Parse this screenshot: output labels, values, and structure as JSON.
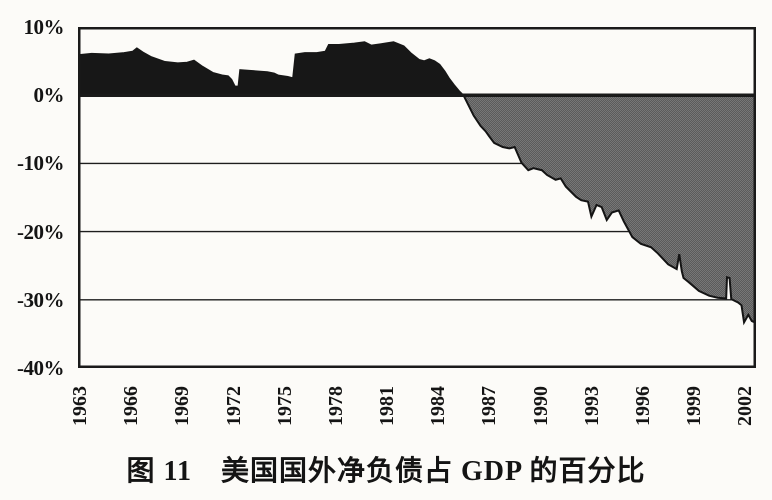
{
  "figure": {
    "caption": "图 11　美国国外净负债占 GDP 的百分比"
  },
  "chart_data": {
    "type": "area",
    "title": "图 11 美国国外净负债占 GDP 的百分比",
    "xlabel": "",
    "ylabel": "",
    "xlim": [
      1963,
      2002.75
    ],
    "ylim": [
      -40,
      10
    ],
    "grid": true,
    "legend": "none",
    "x_ticks": [
      1963,
      1966,
      1969,
      1972,
      1975,
      1978,
      1981,
      1984,
      1987,
      1990,
      1993,
      1996,
      1999,
      2002
    ],
    "x_tick_labels": [
      "1963",
      "1966",
      "1969",
      "1972",
      "1975",
      "1978",
      "1981",
      "1984",
      "1987",
      "1990",
      "1993",
      "1996",
      "1999",
      "2002"
    ],
    "y_ticks": [
      10,
      0,
      -10,
      -20,
      -30,
      -40
    ],
    "y_tick_labels": [
      "10%",
      "0%",
      "-10%",
      "-20%",
      "-30%",
      "-40%"
    ],
    "zero_line": 0,
    "colors": {
      "positive_fill": "#171717",
      "negative_base": "#777777",
      "negative_alt": "#5b5b5b",
      "outline": "#141414",
      "grid": "#1d1d1d",
      "frame": "#1a1a1a",
      "background": "#fcfbf8"
    },
    "series": [
      {
        "name": "net-position-positive-pct-gdp",
        "style": "solid-black-area",
        "points": [
          [
            1963.0,
            5.9
          ],
          [
            1963.8,
            6.1
          ],
          [
            1964.8,
            6.0
          ],
          [
            1965.7,
            6.2
          ],
          [
            1966.2,
            6.4
          ],
          [
            1966.45,
            6.9
          ],
          [
            1966.8,
            6.3
          ],
          [
            1967.3,
            5.6
          ],
          [
            1968.1,
            4.9
          ],
          [
            1968.85,
            4.7
          ],
          [
            1969.4,
            4.8
          ],
          [
            1969.8,
            5.1
          ],
          [
            1970.3,
            4.2
          ],
          [
            1970.9,
            3.3
          ],
          [
            1971.5,
            2.9
          ],
          [
            1971.8,
            2.8
          ],
          [
            1972.0,
            2.3
          ],
          [
            1972.2,
            1.3
          ],
          [
            1972.4,
            1.3
          ],
          [
            1972.5,
            3.7
          ],
          [
            1973.05,
            3.6
          ],
          [
            1973.6,
            3.5
          ],
          [
            1974.1,
            3.4
          ],
          [
            1974.5,
            3.2
          ],
          [
            1974.75,
            2.9
          ],
          [
            1975.3,
            2.7
          ],
          [
            1975.6,
            2.5
          ],
          [
            1975.75,
            6.0
          ],
          [
            1976.3,
            6.2
          ],
          [
            1977.0,
            6.2
          ],
          [
            1977.5,
            6.4
          ],
          [
            1977.7,
            7.4
          ],
          [
            1978.3,
            7.4
          ],
          [
            1979.2,
            7.6
          ],
          [
            1979.8,
            7.8
          ],
          [
            1980.2,
            7.3
          ],
          [
            1981.0,
            7.6
          ],
          [
            1981.5,
            7.8
          ],
          [
            1982.1,
            7.2
          ],
          [
            1982.5,
            6.2
          ],
          [
            1983.0,
            5.2
          ],
          [
            1983.3,
            5.0
          ],
          [
            1983.6,
            5.3
          ],
          [
            1983.9,
            5.0
          ],
          [
            1984.2,
            4.5
          ],
          [
            1984.5,
            3.5
          ],
          [
            1984.75,
            2.5
          ],
          [
            1985.05,
            1.5
          ],
          [
            1985.35,
            0.6
          ],
          [
            1985.6,
            0.0
          ]
        ]
      },
      {
        "name": "net-position-negative-pct-gdp",
        "style": "halftone-gray-area",
        "points": [
          [
            1985.6,
            0.0
          ],
          [
            1985.9,
            -1.5
          ],
          [
            1986.2,
            -3.0
          ],
          [
            1986.6,
            -4.5
          ],
          [
            1986.9,
            -5.3
          ],
          [
            1987.1,
            -6.0
          ],
          [
            1987.4,
            -7.0
          ],
          [
            1987.9,
            -7.6
          ],
          [
            1988.3,
            -7.8
          ],
          [
            1988.6,
            -7.6
          ],
          [
            1989.0,
            -9.9
          ],
          [
            1989.4,
            -11.0
          ],
          [
            1989.7,
            -10.7
          ],
          [
            1990.2,
            -11.0
          ],
          [
            1990.5,
            -11.7
          ],
          [
            1991.0,
            -12.4
          ],
          [
            1991.3,
            -12.2
          ],
          [
            1991.6,
            -13.4
          ],
          [
            1992.2,
            -14.9
          ],
          [
            1992.5,
            -15.4
          ],
          [
            1992.9,
            -15.6
          ],
          [
            1993.1,
            -17.8
          ],
          [
            1993.4,
            -16.1
          ],
          [
            1993.7,
            -16.4
          ],
          [
            1994.0,
            -18.3
          ],
          [
            1994.3,
            -17.2
          ],
          [
            1994.7,
            -16.9
          ],
          [
            1995.0,
            -18.5
          ],
          [
            1995.5,
            -20.8
          ],
          [
            1996.0,
            -21.8
          ],
          [
            1996.6,
            -22.3
          ],
          [
            1997.0,
            -23.2
          ],
          [
            1997.6,
            -24.8
          ],
          [
            1998.1,
            -25.5
          ],
          [
            1998.25,
            -23.3
          ],
          [
            1998.4,
            -25.8
          ],
          [
            1998.5,
            -26.8
          ],
          [
            1998.8,
            -27.4
          ],
          [
            1999.4,
            -28.7
          ],
          [
            2000.0,
            -29.4
          ],
          [
            2000.5,
            -29.7
          ],
          [
            2001.0,
            -29.8
          ],
          [
            2001.05,
            -26.7
          ],
          [
            2001.2,
            -26.8
          ],
          [
            2001.3,
            -29.9
          ],
          [
            2001.7,
            -30.4
          ],
          [
            2001.9,
            -30.8
          ],
          [
            2002.05,
            -33.3
          ],
          [
            2002.3,
            -32.2
          ],
          [
            2002.5,
            -33.1
          ],
          [
            2002.75,
            -33.4
          ]
        ]
      }
    ]
  }
}
